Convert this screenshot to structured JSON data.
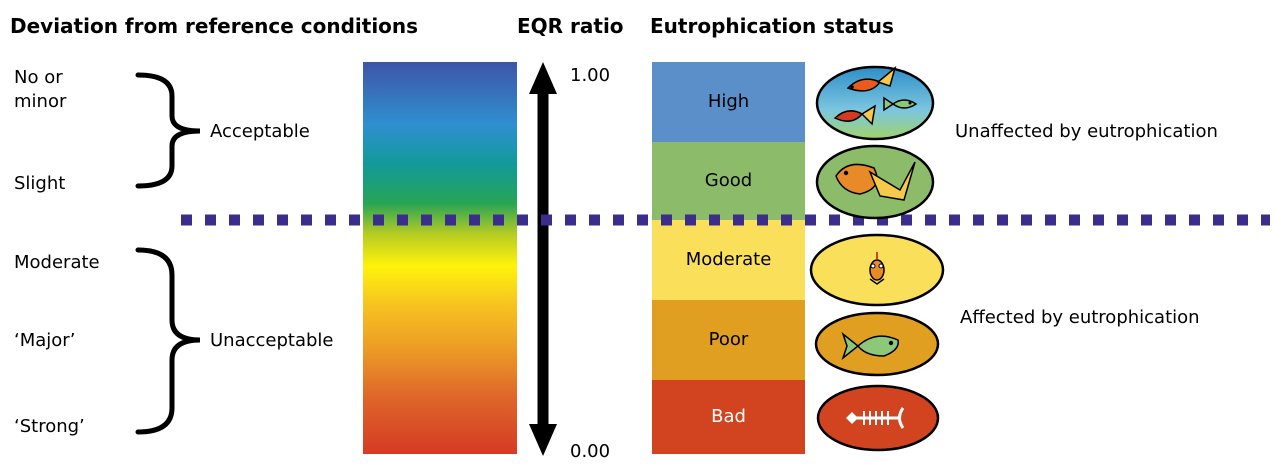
{
  "headers": {
    "deviation": "Deviation from reference conditions",
    "eqr": "EQR ratio",
    "eutrophication": "Eutrophication status"
  },
  "deviation_levels": {
    "no_or_minor": "No or minor",
    "slight": "Slight",
    "moderate": "Moderate",
    "major": "‘Major’",
    "strong": "‘Strong’"
  },
  "groups": {
    "acceptable": "Acceptable",
    "unacceptable": "Unacceptable"
  },
  "eqr_scale": {
    "top": "1.00",
    "bottom": "0.00"
  },
  "status_classes": {
    "high": "High",
    "good": "Good",
    "moderate": "Moderate",
    "poor": "Poor",
    "bad": "Bad"
  },
  "status_notes": {
    "unaffected": "Unaffected by eutrophication",
    "affected": "Affected by eutrophication"
  },
  "colors": {
    "high": "#5b8fca",
    "good": "#8cbb6a",
    "moderate": "#fae05a",
    "poor": "#e09f21",
    "bad": "#d2431f",
    "divider": "#3a2d8c"
  }
}
